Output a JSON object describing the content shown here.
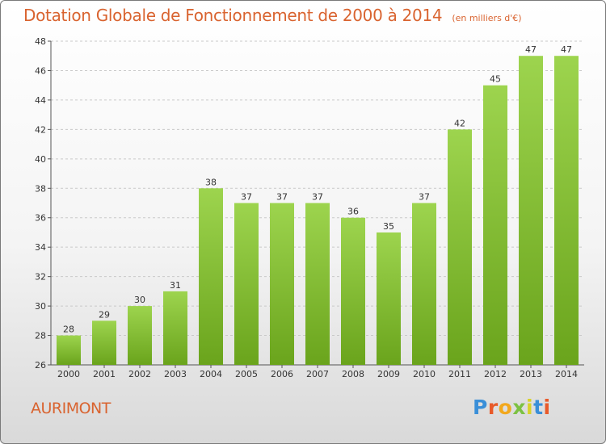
{
  "title": "Dotation Globale de Fonctionnement de 2000 à 2014",
  "unit_note": "(en milliers d'€)",
  "place_name": "AURIMONT",
  "logo": {
    "text": "Proxiti",
    "colors": [
      "#3a8fd8",
      "#e85a2a",
      "#f2a81d",
      "#7cc142",
      "#d9d22a",
      "#3a8fd8",
      "#e85a2a"
    ]
  },
  "colors": {
    "bar_top": "#9dd44e",
    "bar_bottom": "#6aa41c",
    "title": "#d9632f"
  },
  "chart_data": {
    "type": "bar",
    "title": "Dotation Globale de Fonctionnement de 2000 à 2014",
    "categories": [
      "2000",
      "2001",
      "2002",
      "2003",
      "2004",
      "2005",
      "2006",
      "2007",
      "2008",
      "2009",
      "2010",
      "2011",
      "2012",
      "2013",
      "2014"
    ],
    "values": [
      28,
      29,
      30,
      31,
      38,
      37,
      37,
      37,
      36,
      35,
      37,
      42,
      45,
      47,
      47
    ],
    "ylim": [
      26,
      48
    ],
    "yticks": [
      26,
      28,
      30,
      32,
      34,
      36,
      38,
      40,
      42,
      44,
      46,
      48
    ],
    "grid": true,
    "data_labels": true
  }
}
